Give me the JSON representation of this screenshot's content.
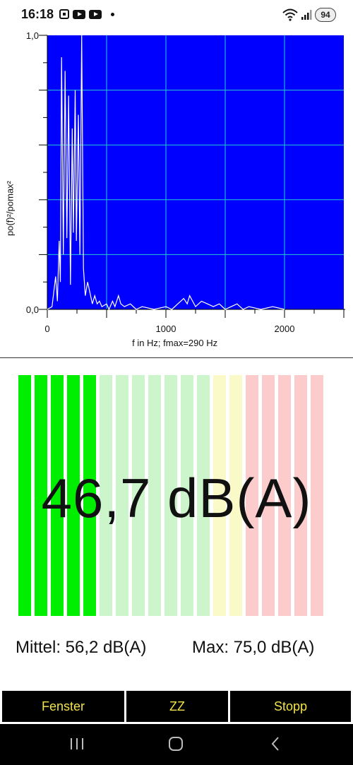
{
  "status_bar": {
    "time": "16:18",
    "battery": "94",
    "icons": [
      "screenshot-icon",
      "youtube-icon",
      "youtube-icon",
      "notification-dot-icon",
      "wifi-icon",
      "signal-icon",
      "battery-icon"
    ]
  },
  "chart_data": {
    "type": "line",
    "title": "",
    "xlabel": "f in Hz; fmax=290 Hz",
    "ylabel": "po(f)²/pomax²",
    "xlim": [
      0,
      2500
    ],
    "ylim": [
      0,
      1
    ],
    "x_tick_labels": [
      "0",
      "1000",
      "2000"
    ],
    "y_tick_labels": [
      "0,0",
      "1,0"
    ],
    "grid": true,
    "background_color": "#0000ff",
    "grid_color": "#22cccc",
    "line_color": "#ffffff",
    "series": [
      {
        "values": [
          [
            0,
            0
          ],
          [
            40,
            0.01
          ],
          [
            70,
            0.12
          ],
          [
            85,
            0.03
          ],
          [
            100,
            0.25
          ],
          [
            110,
            0.1
          ],
          [
            120,
            0.92
          ],
          [
            135,
            0.2
          ],
          [
            150,
            0.87
          ],
          [
            165,
            0.26
          ],
          [
            180,
            0.78
          ],
          [
            195,
            0.09
          ],
          [
            210,
            0.66
          ],
          [
            220,
            0.28
          ],
          [
            235,
            0.8
          ],
          [
            245,
            0.25
          ],
          [
            262,
            0.71
          ],
          [
            275,
            0.2
          ],
          [
            290,
            1.0
          ],
          [
            305,
            0.15
          ],
          [
            320,
            0.05
          ],
          [
            340,
            0.1
          ],
          [
            360,
            0.06
          ],
          [
            380,
            0.02
          ],
          [
            400,
            0.05
          ],
          [
            420,
            0.02
          ],
          [
            440,
            0.03
          ],
          [
            460,
            0.01
          ],
          [
            500,
            0.02
          ],
          [
            520,
            0.0
          ],
          [
            550,
            0.03
          ],
          [
            570,
            0.01
          ],
          [
            600,
            0.05
          ],
          [
            620,
            0.02
          ],
          [
            650,
            0.01
          ],
          [
            700,
            0.02
          ],
          [
            750,
            0.0
          ],
          [
            800,
            0.01
          ],
          [
            900,
            0.0
          ],
          [
            1000,
            0.01
          ],
          [
            1050,
            0.0
          ],
          [
            1100,
            0.02
          ],
          [
            1150,
            0.04
          ],
          [
            1180,
            0.02
          ],
          [
            1200,
            0.05
          ],
          [
            1250,
            0.01
          ],
          [
            1300,
            0.03
          ],
          [
            1350,
            0.02
          ],
          [
            1400,
            0.01
          ],
          [
            1450,
            0.02
          ],
          [
            1500,
            0.0
          ],
          [
            1550,
            0.01
          ],
          [
            1600,
            0.02
          ],
          [
            1650,
            0.0
          ],
          [
            1700,
            0.01
          ],
          [
            1800,
            0.0
          ],
          [
            1900,
            0.01
          ],
          [
            2000,
            0.0
          ]
        ]
      }
    ]
  },
  "meter": {
    "segments_total": 19,
    "segments_active": 5,
    "green_active": "#00ee00",
    "green_inactive": "#ccf5cc",
    "yellow_inactive": "#fafac8",
    "red_inactive": "#fccccc",
    "reading": "46,7 dB(A)"
  },
  "stats": {
    "mean": "Mittel: 56,2 dB(A)",
    "max": "Max: 75,0 dB(A)"
  },
  "buttons": {
    "fenster": "Fenster",
    "zz": "ZZ",
    "stopp": "Stopp"
  },
  "navbar": {
    "icons": [
      "recent-apps-icon",
      "home-icon",
      "back-icon"
    ]
  }
}
